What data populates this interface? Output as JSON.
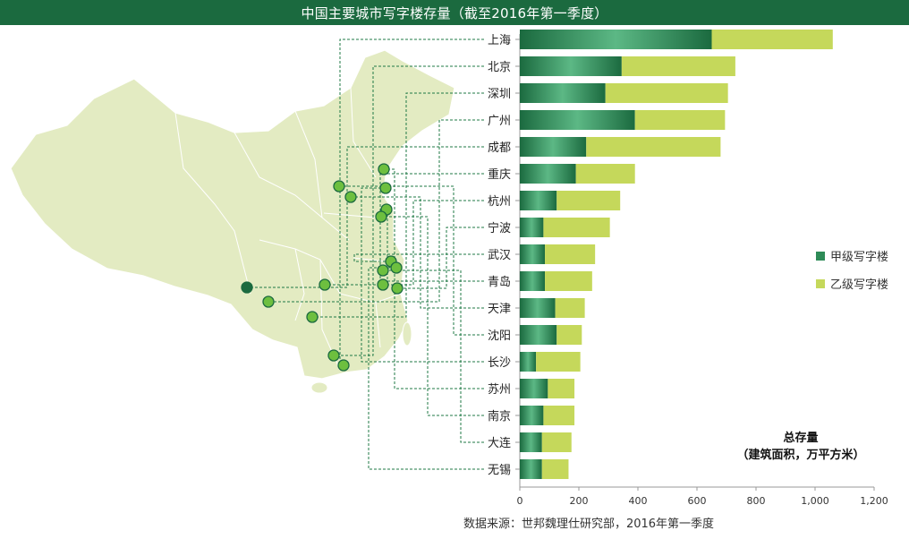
{
  "title": "中国主要城市写字楼存量（截至2016年第一季度）",
  "source": "数据来源：世邦魏理仕研究部，2016年第一季度",
  "note": {
    "line1": "总存量",
    "line2": "（建筑面积，万平方米）"
  },
  "colors": {
    "title_bg": "#1b6a3f",
    "gradeA": "#2e8b57",
    "gradeB": "#c5d85b",
    "map_fill": "#e3ebc2",
    "map_line": "#ffffff",
    "leader": "#1f7a45"
  },
  "chart_data": {
    "type": "bar",
    "orientation": "horizontal",
    "stacked": true,
    "categories": [
      "上海",
      "北京",
      "深圳",
      "广州",
      "成都",
      "重庆",
      "杭州",
      "宁波",
      "武汉",
      "青岛",
      "天津",
      "沈阳",
      "长沙",
      "苏州",
      "南京",
      "大连",
      "无锡"
    ],
    "series": [
      {
        "name": "甲级写字楼",
        "values": [
          650,
          345,
          290,
          390,
          225,
          190,
          125,
          80,
          85,
          85,
          120,
          125,
          55,
          95,
          80,
          75,
          75
        ]
      },
      {
        "name": "乙级写字楼",
        "values": [
          410,
          385,
          415,
          305,
          455,
          200,
          215,
          225,
          170,
          160,
          100,
          85,
          150,
          90,
          105,
          100,
          90
        ]
      }
    ],
    "xlim": [
      0,
      1200
    ],
    "xticks": [
      "0",
      "200",
      "400",
      "600",
      "800",
      "1,000",
      "1,200"
    ],
    "legend_position": "right"
  }
}
